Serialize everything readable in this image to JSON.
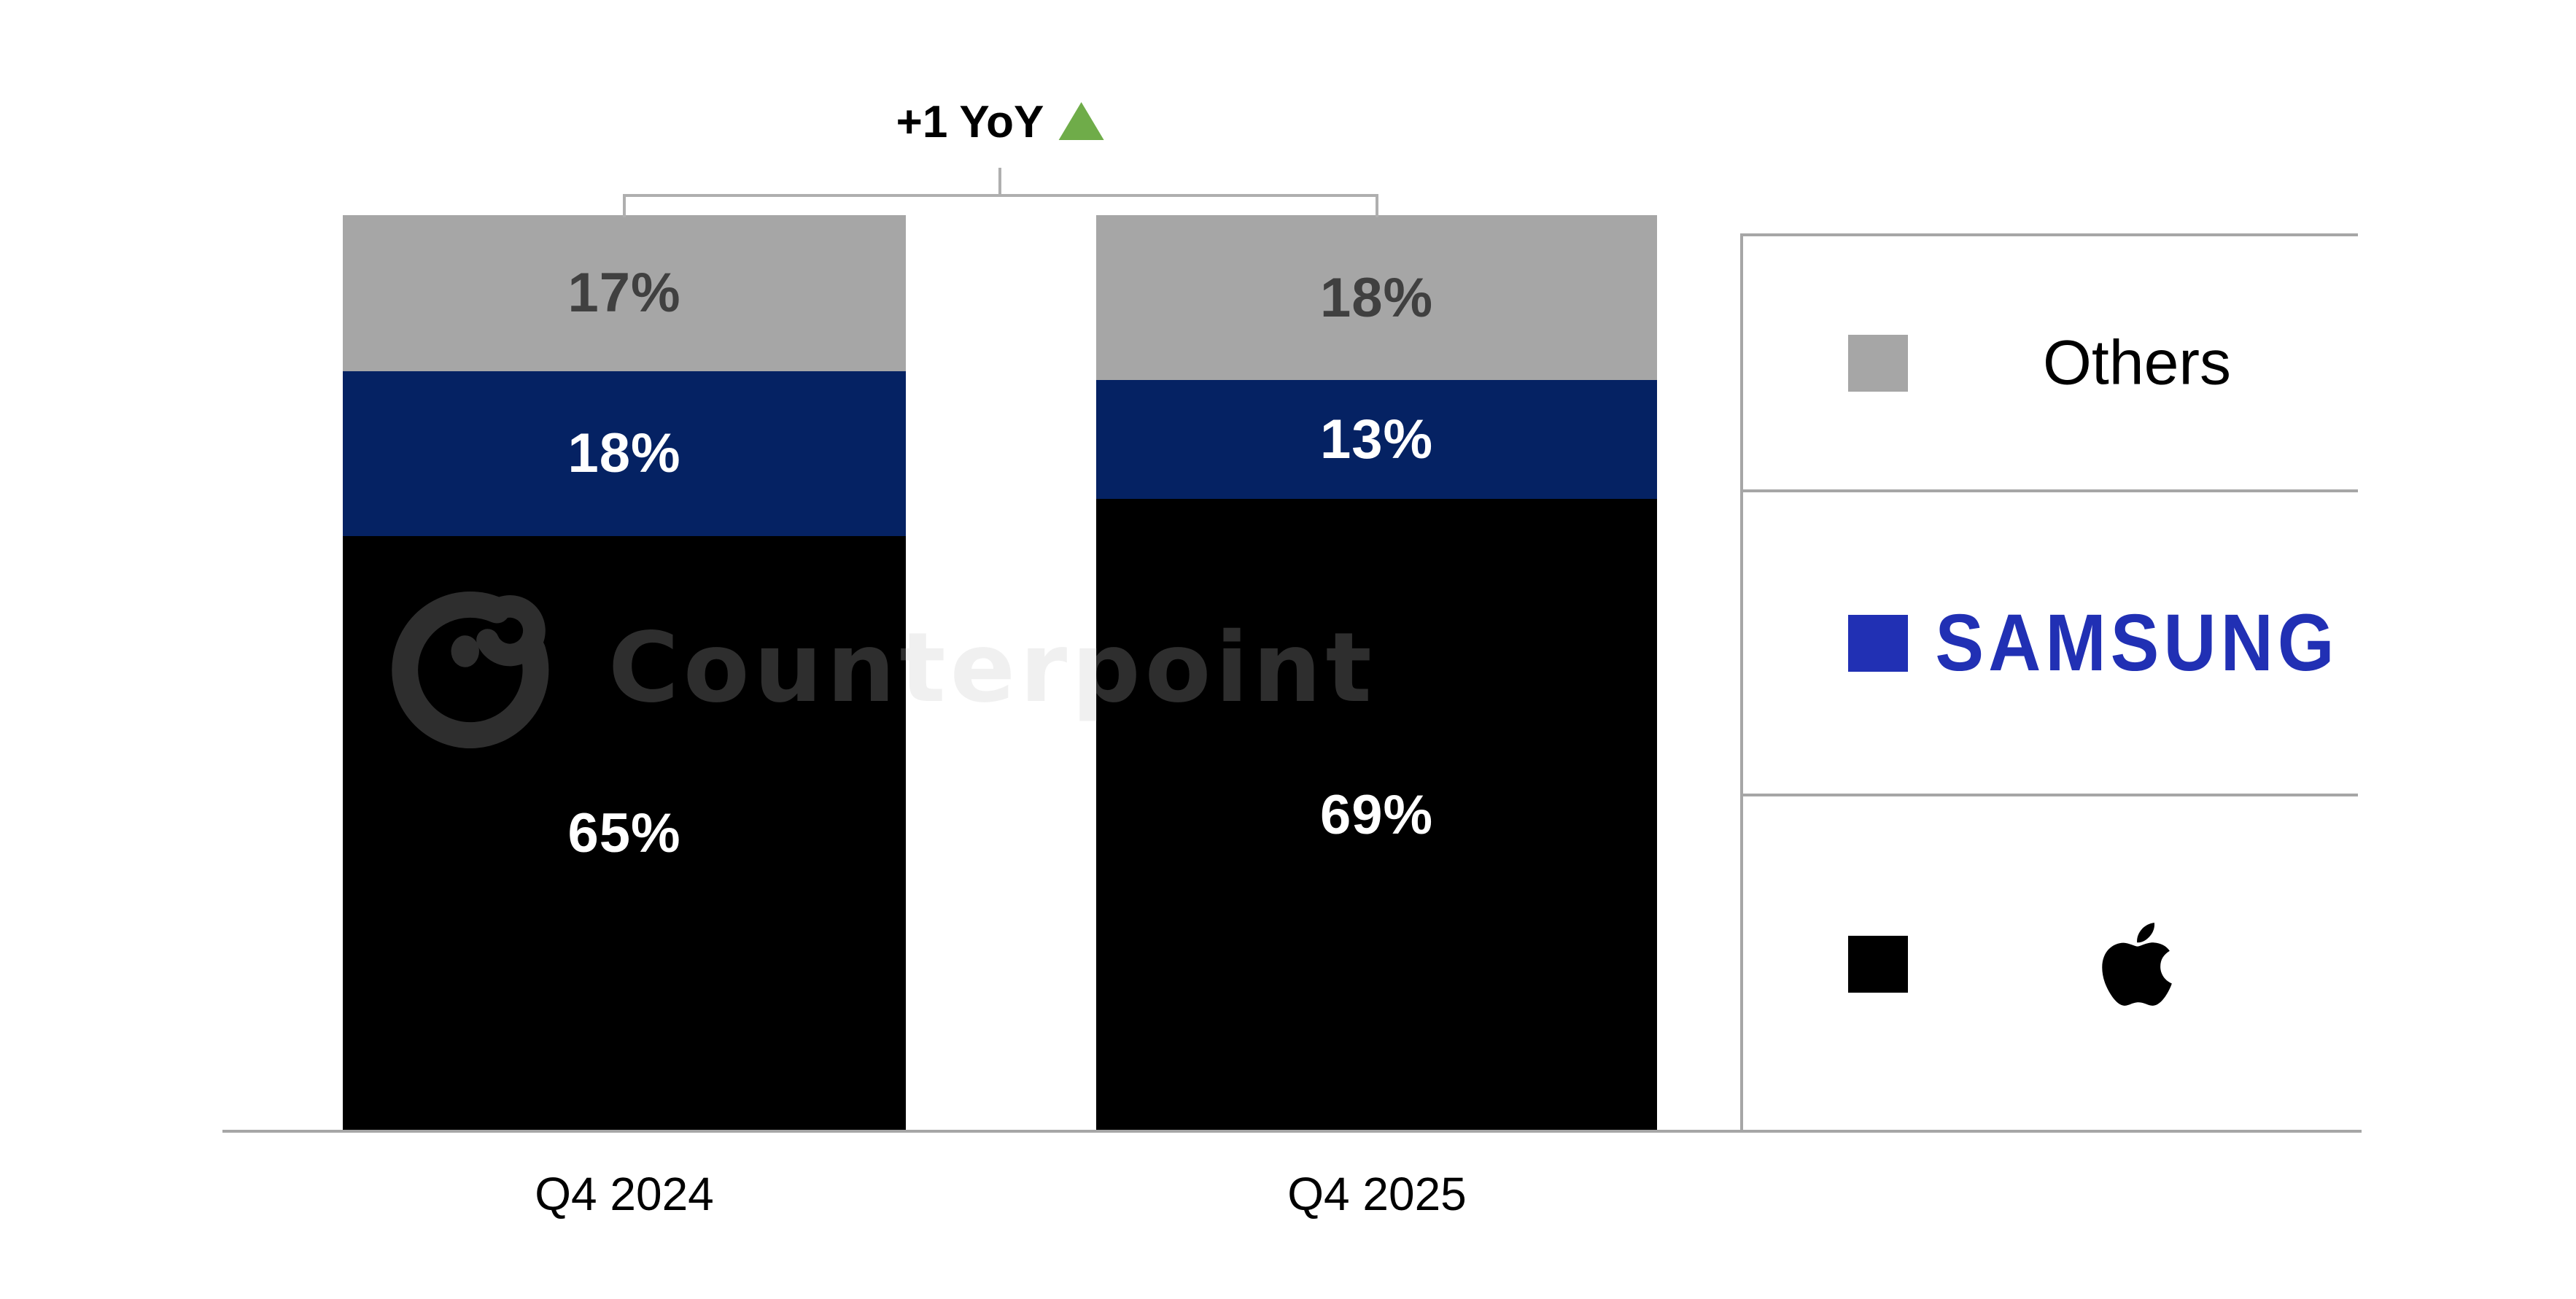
{
  "chart_data": {
    "type": "bar",
    "stacked": true,
    "stack_order": "top-to-bottom",
    "categories": [
      "Q4 2024",
      "Q4 2025"
    ],
    "series": [
      {
        "name": "Others",
        "color": "#a6a6a6",
        "label_color": "#404040",
        "values": [
          17,
          18
        ]
      },
      {
        "name": "Samsung",
        "color": "#052263",
        "label_color": "#ffffff",
        "values": [
          18,
          13
        ]
      },
      {
        "name": "Apple",
        "color": "#000000",
        "label_color": "#ffffff",
        "values": [
          65,
          69
        ]
      }
    ],
    "value_suffix": "%",
    "ylim": [
      0,
      100
    ],
    "grid": false,
    "legend_position": "right",
    "title": ""
  },
  "annotation": {
    "label": "+1 YoY",
    "direction": "up"
  },
  "watermark": {
    "text": "Counterpoint",
    "logo": "counterpoint-c-logo"
  },
  "legend": {
    "items": [
      {
        "label": "Others",
        "swatch_color": "#a6a6a6",
        "icon": "none"
      },
      {
        "label": "SAMSUNG",
        "swatch_color": "#2130b4",
        "icon": "samsung-wordmark"
      },
      {
        "label": "",
        "swatch_color": "#000000",
        "icon": "apple-logo"
      }
    ]
  },
  "colors": {
    "green": "#6fac49",
    "samsung_blue": "#2130b4",
    "line_gray": "#a6a6a6",
    "bar_navy": "#052263",
    "bar_gray": "#a6a6a6",
    "bar_black": "#000000"
  }
}
